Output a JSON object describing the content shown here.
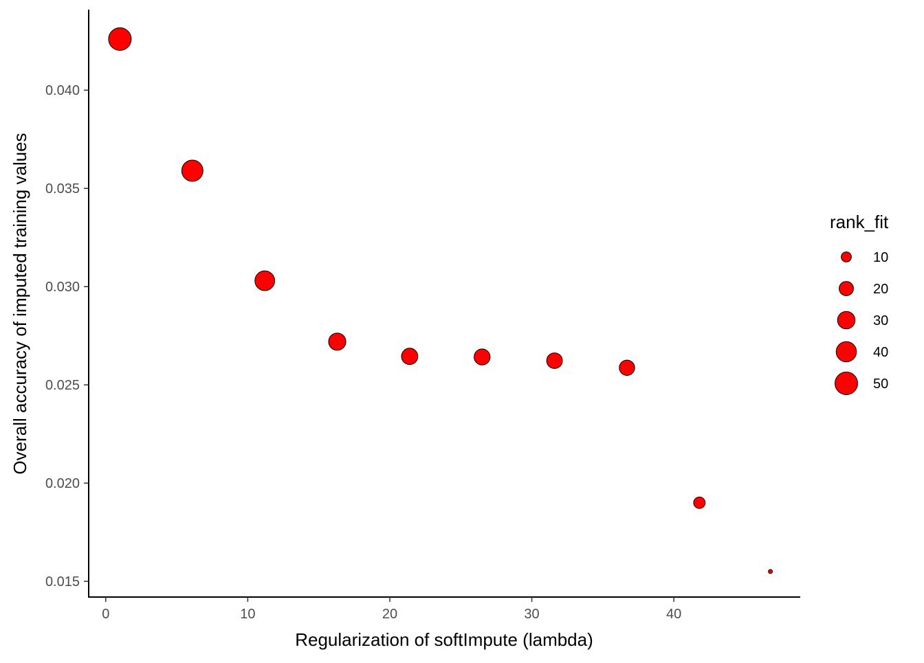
{
  "chart_data": {
    "type": "scatter",
    "title": "",
    "xlabel": "Regularization of softImpute (lambda)",
    "ylabel": "Overall accuracy of imputed training values",
    "xlim": [
      -1.2,
      48.9
    ],
    "ylim": [
      0.0142,
      0.0441
    ],
    "x_ticks": [
      0,
      10,
      20,
      30,
      40
    ],
    "x_tick_labels": [
      "0",
      "10",
      "20",
      "30",
      "40"
    ],
    "y_ticks": [
      0.015,
      0.02,
      0.025,
      0.03,
      0.035,
      0.04
    ],
    "y_tick_labels": [
      "0.015",
      "0.020",
      "0.025",
      "0.030",
      "0.035",
      "0.040"
    ],
    "grid": false,
    "point_color": "#ff0000",
    "point_stroke": "#000000",
    "size_variable": "rank_fit",
    "points": [
      {
        "x": 1,
        "y": 0.0426,
        "rank_fit": 50
      },
      {
        "x": 6.1,
        "y": 0.0359,
        "rank_fit": 44
      },
      {
        "x": 11.2,
        "y": 0.0303,
        "rank_fit": 38
      },
      {
        "x": 16.3,
        "y": 0.0272,
        "rank_fit": 29
      },
      {
        "x": 21.4,
        "y": 0.02645,
        "rank_fit": 26
      },
      {
        "x": 26.5,
        "y": 0.02642,
        "rank_fit": 25
      },
      {
        "x": 31.6,
        "y": 0.02623,
        "rank_fit": 24
      },
      {
        "x": 36.7,
        "y": 0.02587,
        "rank_fit": 23
      },
      {
        "x": 41.8,
        "y": 0.019,
        "rank_fit": 13
      },
      {
        "x": 46.8,
        "y": 0.0155,
        "rank_fit": 1
      }
    ],
    "legend": {
      "title": "rank_fit",
      "position": "right",
      "entries": [
        {
          "label": "10",
          "value": 10
        },
        {
          "label": "20",
          "value": 20
        },
        {
          "label": "30",
          "value": 30
        },
        {
          "label": "40",
          "value": 40
        },
        {
          "label": "50",
          "value": 50
        }
      ]
    }
  }
}
